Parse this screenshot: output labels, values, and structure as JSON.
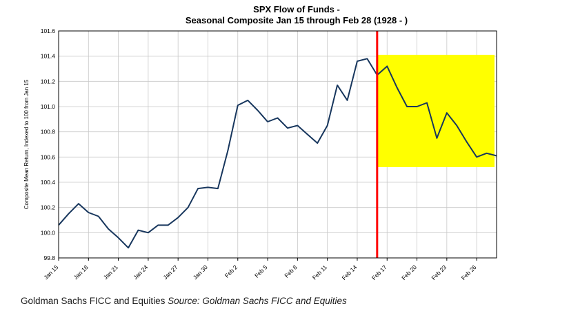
{
  "title": {
    "line1": "SPX Flow of Funds -",
    "line2": "Seasonal Composite Jan 15 through Feb 28 (1928 - )"
  },
  "footer": {
    "normal": "Goldman Sachs FICC and Equities ",
    "italic": "Source: Goldman Sachs FICC and Equities"
  },
  "chart_data": {
    "type": "line",
    "title": "SPX Flow of Funds - Seasonal Composite Jan 15 through Feb 28 (1928 - )",
    "ylabel": "Composite Mean Return, Indexed to 100 from Jan 15",
    "xlabel": "",
    "ylim": [
      99.8,
      101.6
    ],
    "ytick_step": 0.2,
    "grid": true,
    "legend": "none",
    "line_color": "#17365d",
    "grid_color": "#c8c8c8",
    "x": [
      "Jan 15",
      "Jan 16",
      "Jan 17",
      "Jan 18",
      "Jan 19",
      "Jan 20",
      "Jan 21",
      "Jan 22",
      "Jan 23",
      "Jan 24",
      "Jan 25",
      "Jan 26",
      "Jan 27",
      "Jan 28",
      "Jan 29",
      "Jan 30",
      "Jan 31",
      "Feb 1",
      "Feb 2",
      "Feb 3",
      "Feb 4",
      "Feb 5",
      "Feb 6",
      "Feb 7",
      "Feb 8",
      "Feb 9",
      "Feb 10",
      "Feb 11",
      "Feb 12",
      "Feb 13",
      "Feb 14",
      "Feb 15",
      "Feb 16",
      "Feb 17",
      "Feb 18",
      "Feb 19",
      "Feb 20",
      "Feb 21",
      "Feb 22",
      "Feb 23",
      "Feb 24",
      "Feb 25",
      "Feb 26",
      "Feb 27",
      "Feb 28"
    ],
    "values": [
      100.06,
      100.15,
      100.23,
      100.16,
      100.13,
      100.03,
      99.96,
      99.88,
      100.02,
      100.0,
      100.06,
      100.06,
      100.12,
      100.2,
      100.35,
      100.36,
      100.35,
      100.65,
      101.01,
      101.05,
      100.97,
      100.88,
      100.91,
      100.83,
      100.85,
      100.78,
      100.71,
      100.85,
      101.17,
      101.05,
      101.36,
      101.38,
      101.25,
      101.32,
      101.15,
      101.0,
      101.0,
      101.03,
      100.75,
      100.95,
      100.85,
      100.72,
      100.6,
      100.63,
      100.61
    ],
    "xticks": [
      "Jan 15",
      "Jan 18",
      "Jan 21",
      "Jan 24",
      "Jan 27",
      "Jan 30",
      "Feb 2",
      "Feb 5",
      "Feb 8",
      "Feb 11",
      "Feb 14",
      "Feb 17",
      "Feb 20",
      "Feb 23",
      "Feb 26"
    ],
    "vline": {
      "x": "Feb 16",
      "color": "#ff0000",
      "width": 3
    },
    "highlight_region": {
      "x_start": "Feb 16",
      "x_end": "Feb 28",
      "y_start": 100.52,
      "y_end": 101.41,
      "color": "#ffff00"
    }
  }
}
